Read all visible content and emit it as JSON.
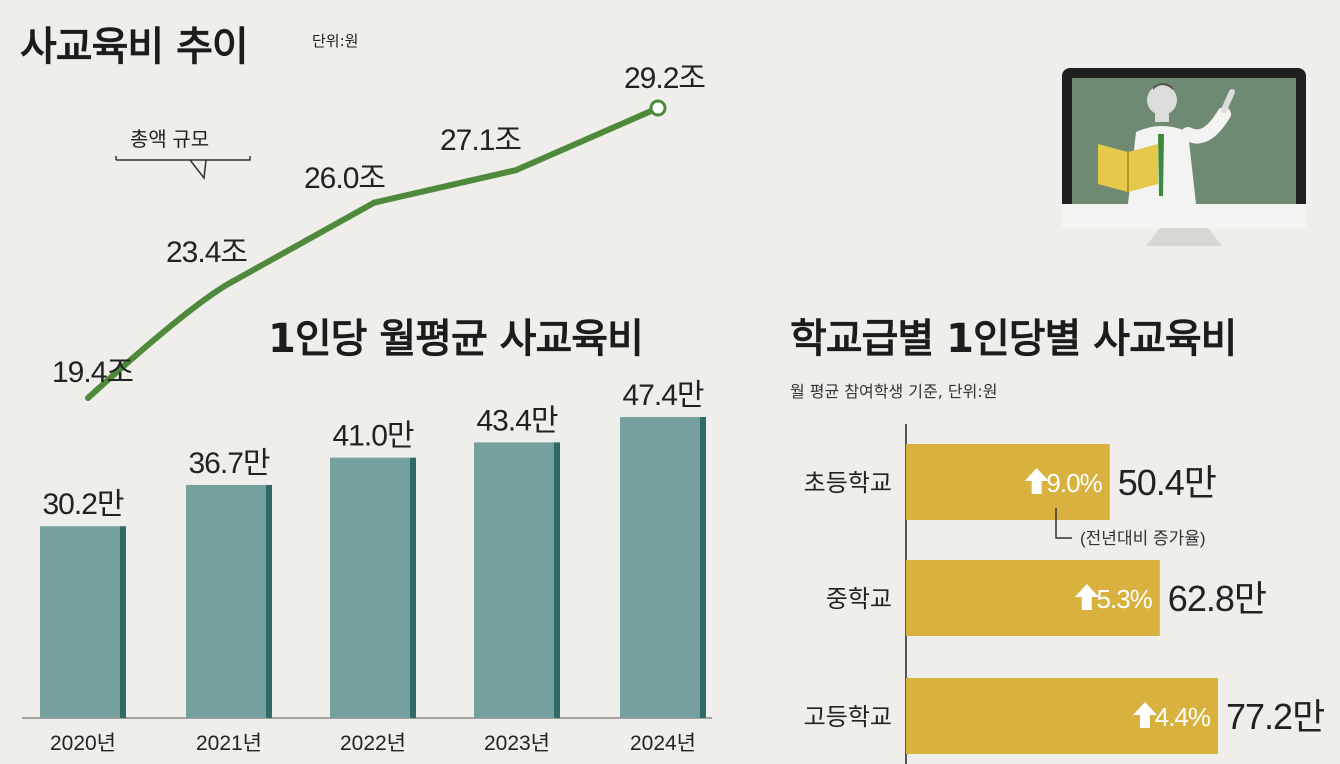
{
  "header": {
    "title": "사교육비 추이",
    "unit": "단위:원"
  },
  "line_section": {
    "legend_label": "총액 규모"
  },
  "bar_section": {
    "title": "1인당 월평균 사교육비"
  },
  "school_section": {
    "title": "학교급별 1인당별 사교육비",
    "subtitle": "월 평균 참여학생 기준, 단위:원",
    "annotation": "(전년대비 증가율)"
  },
  "chart_data": [
    {
      "type": "line",
      "title": "사교육비 추이",
      "unit": "단위:원",
      "x": [
        "2020년",
        "2021년",
        "2022년",
        "2023년",
        "2024년"
      ],
      "series": [
        {
          "name": "총액 규모",
          "values": [
            19.4,
            23.4,
            26.0,
            27.1,
            29.2
          ],
          "labels": [
            "19.4조",
            "23.4조",
            "26.0조",
            "27.1조",
            "29.2조"
          ]
        }
      ],
      "color": "#4f8a3c"
    },
    {
      "type": "bar",
      "title": "1인당 월평균 사교육비",
      "categories": [
        "2020년",
        "2021년",
        "2022년",
        "2023년",
        "2024년"
      ],
      "values": [
        30.2,
        36.7,
        41.0,
        43.4,
        47.4
      ],
      "labels": [
        "30.2만",
        "36.7만",
        "41.0만",
        "43.4만",
        "47.4만"
      ],
      "ylim": [
        0,
        50
      ],
      "color": "#76a09d",
      "edge_color": "#2f6b64"
    },
    {
      "type": "bar",
      "orientation": "horizontal",
      "title": "학교급별 1인당별 사교육비",
      "subtitle": "월 평균 참여학생 기준, 단위:원",
      "categories": [
        "초등학교",
        "중학교",
        "고등학교"
      ],
      "values": [
        50.4,
        62.8,
        77.2
      ],
      "labels": [
        "50.4만",
        "62.8만",
        "77.2만"
      ],
      "growth": [
        "9.0%",
        "5.3%",
        "4.4%"
      ],
      "growth_note": "(전년대비 증가율)",
      "color": "#d8b13e"
    }
  ]
}
